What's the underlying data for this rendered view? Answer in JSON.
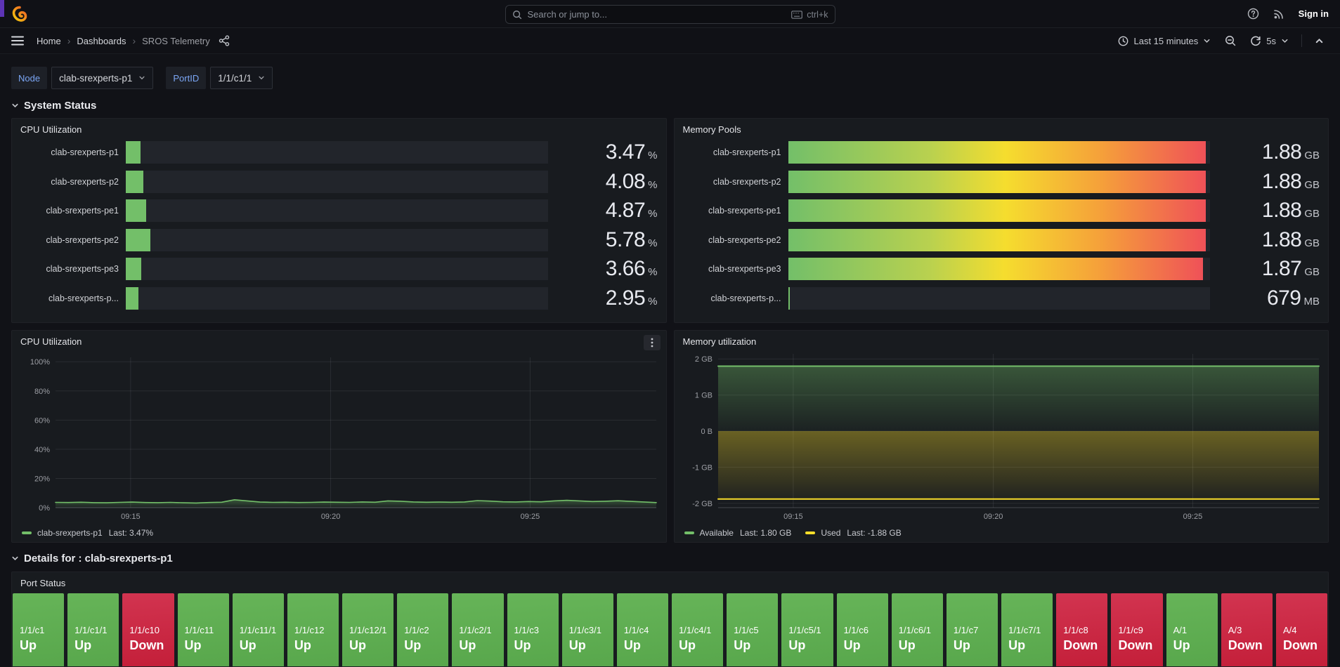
{
  "topbar": {
    "search_placeholder": "Search or jump to...",
    "shortcut": "ctrl+k",
    "sign_in": "Sign in"
  },
  "navbar": {
    "breadcrumb": [
      {
        "label": "Home"
      },
      {
        "label": "Dashboards"
      },
      {
        "label": "SROS Telemetry"
      }
    ],
    "time_range": "Last 15 minutes",
    "refresh_interval": "5s"
  },
  "variables": [
    {
      "label": "Node",
      "value": "clab-srexperts-p1"
    },
    {
      "label": "PortID",
      "value": "1/1/c1/1"
    }
  ],
  "sections": {
    "system_status": "System Status",
    "details": "Details for : clab-srexperts-p1"
  },
  "cpu_gauge": {
    "title": "CPU Utilization",
    "rows": [
      {
        "label": "clab-srexperts-p1",
        "value": "3.47",
        "unit": "%",
        "pct": 3.47
      },
      {
        "label": "clab-srexperts-p2",
        "value": "4.08",
        "unit": "%",
        "pct": 4.08
      },
      {
        "label": "clab-srexperts-pe1",
        "value": "4.87",
        "unit": "%",
        "pct": 4.87
      },
      {
        "label": "clab-srexperts-pe2",
        "value": "5.78",
        "unit": "%",
        "pct": 5.78
      },
      {
        "label": "clab-srexperts-pe3",
        "value": "3.66",
        "unit": "%",
        "pct": 3.66
      },
      {
        "label": "clab-srexperts-p...",
        "value": "2.95",
        "unit": "%",
        "pct": 2.95
      }
    ]
  },
  "mem_gauge": {
    "title": "Memory Pools",
    "rows": [
      {
        "label": "clab-srexperts-p1",
        "value": "1.88",
        "unit": "GB",
        "pct": 99
      },
      {
        "label": "clab-srexperts-p2",
        "value": "1.88",
        "unit": "GB",
        "pct": 99
      },
      {
        "label": "clab-srexperts-pe1",
        "value": "1.88",
        "unit": "GB",
        "pct": 99
      },
      {
        "label": "clab-srexperts-pe2",
        "value": "1.88",
        "unit": "GB",
        "pct": 99
      },
      {
        "label": "clab-srexperts-pe3",
        "value": "1.87",
        "unit": "GB",
        "pct": 98.3
      },
      {
        "label": "clab-srexperts-p...",
        "value": "679",
        "unit": "MB",
        "pct": 0
      }
    ]
  },
  "chart_data": [
    {
      "id": "cpu_chart",
      "type": "line",
      "title": "CPU Utilization",
      "ylim": [
        0,
        103
      ],
      "yticks": [
        {
          "v": 100,
          "label": "100%"
        },
        {
          "v": 80,
          "label": "80%"
        },
        {
          "v": 60,
          "label": "60%"
        },
        {
          "v": 40,
          "label": "40%"
        },
        {
          "v": 20,
          "label": "20%"
        },
        {
          "v": 0,
          "label": "0%"
        }
      ],
      "xticks": [
        {
          "pos": 0.125,
          "label": "09:15"
        },
        {
          "pos": 0.458,
          "label": "09:20"
        },
        {
          "pos": 0.79,
          "label": "09:25"
        }
      ],
      "grid": true,
      "legend_position": "bottom",
      "series": [
        {
          "name": "clab-srexperts-p1",
          "color": "#73bf69",
          "last": "Last: 3.47%",
          "line_width": 1.6,
          "values": [
            3.6,
            3.5,
            3.7,
            3.4,
            3.3,
            3.6,
            3.8,
            3.5,
            3.4,
            3.6,
            3.3,
            3.2,
            3.5,
            3.7,
            5.4,
            4.6,
            3.8,
            3.6,
            3.7,
            3.5,
            3.6,
            3.8,
            3.7,
            3.6,
            3.9,
            3.7,
            4.6,
            4.4,
            3.9,
            3.7,
            3.8,
            3.7,
            3.9,
            4.8,
            4.5,
            4.0,
            3.9,
            4.2,
            4.0,
            4.6,
            5.0,
            4.6,
            4.2,
            4.4,
            4.7,
            4.3,
            3.9,
            3.47
          ]
        }
      ]
    },
    {
      "id": "mem_chart",
      "type": "line",
      "title": "Memory utilization",
      "ylim": [
        -2.12,
        2.14
      ],
      "yticks": [
        {
          "v": 2,
          "label": "2 GB"
        },
        {
          "v": 1,
          "label": "1 GB"
        },
        {
          "v": 0,
          "label": "0 B"
        },
        {
          "v": -1,
          "label": "-1 GB"
        },
        {
          "v": -2,
          "label": "-2 GB"
        }
      ],
      "xticks": [
        {
          "pos": 0.125,
          "label": "09:15"
        },
        {
          "pos": 0.458,
          "label": "09:20"
        },
        {
          "pos": 0.79,
          "label": "09:25"
        }
      ],
      "grid": true,
      "legend_position": "bottom",
      "series": [
        {
          "name": "Available",
          "color": "#73bf69",
          "last": "Last: 1.80 GB",
          "line_width": 2,
          "values": [
            1.8,
            1.8
          ]
        },
        {
          "name": "Used",
          "color": "#fade2a",
          "last": "Last: -1.88 GB",
          "line_width": 2,
          "values": [
            -1.88,
            -1.88
          ]
        }
      ]
    }
  ],
  "port_status": {
    "title": "Port Status",
    "up_color": "#56a64b",
    "down_color": "#c4162a",
    "ports": [
      {
        "name": "1/1/c1",
        "state": "Up"
      },
      {
        "name": "1/1/c1/1",
        "state": "Up"
      },
      {
        "name": "1/1/c10",
        "state": "Down"
      },
      {
        "name": "1/1/c11",
        "state": "Up"
      },
      {
        "name": "1/1/c11/1",
        "state": "Up"
      },
      {
        "name": "1/1/c12",
        "state": "Up"
      },
      {
        "name": "1/1/c12/1",
        "state": "Up"
      },
      {
        "name": "1/1/c2",
        "state": "Up"
      },
      {
        "name": "1/1/c2/1",
        "state": "Up"
      },
      {
        "name": "1/1/c3",
        "state": "Up"
      },
      {
        "name": "1/1/c3/1",
        "state": "Up"
      },
      {
        "name": "1/1/c4",
        "state": "Up"
      },
      {
        "name": "1/1/c4/1",
        "state": "Up"
      },
      {
        "name": "1/1/c5",
        "state": "Up"
      },
      {
        "name": "1/1/c5/1",
        "state": "Up"
      },
      {
        "name": "1/1/c6",
        "state": "Up"
      },
      {
        "name": "1/1/c6/1",
        "state": "Up"
      },
      {
        "name": "1/1/c7",
        "state": "Up"
      },
      {
        "name": "1/1/c7/1",
        "state": "Up"
      },
      {
        "name": "1/1/c8",
        "state": "Down"
      },
      {
        "name": "1/1/c9",
        "state": "Down"
      },
      {
        "name": "A/1",
        "state": "Up"
      },
      {
        "name": "A/3",
        "state": "Down"
      },
      {
        "name": "A/4",
        "state": "Down"
      }
    ]
  }
}
